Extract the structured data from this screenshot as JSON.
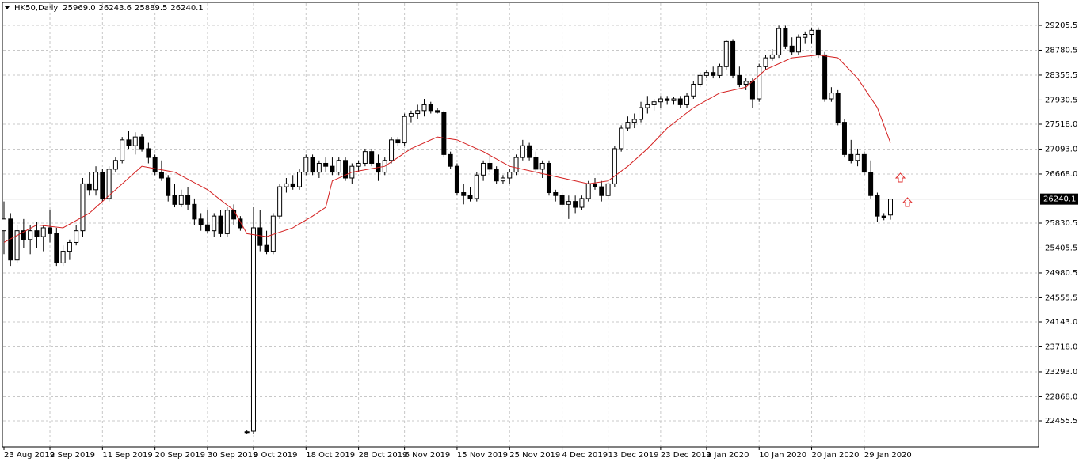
{
  "chart_data": {
    "type": "candlestick",
    "title": "HK50,Daily",
    "header_ohlc_labels": [
      "25969.0",
      "26243.6",
      "25889.5",
      "26240.1"
    ],
    "ylim": [
      22010,
      29597
    ],
    "yticks": [
      29205.5,
      28780.5,
      28355.5,
      27930.5,
      {
        "value": 27518,
        "label": "27518.0"
      },
      {
        "value": 27093,
        "label": "27093.0"
      },
      {
        "value": 26668,
        "label": "26668.0"
      },
      25830.5,
      25405.5,
      24980.5,
      24555.5,
      {
        "value": 24143,
        "label": "24143.0"
      },
      {
        "value": 23718,
        "label": "23718.0"
      },
      {
        "value": 23293,
        "label": "23293.0"
      },
      {
        "value": 22868,
        "label": "22868.0"
      },
      22455.5
    ],
    "grid": true,
    "up_color": "#ffffff",
    "down_color": "#000000",
    "categories": [
      "23 Aug 2019",
      null,
      null,
      null,
      null,
      null,
      null,
      "2 Sep 2019",
      null,
      null,
      null,
      null,
      null,
      null,
      null,
      "11 Sep 2019",
      null,
      null,
      null,
      null,
      null,
      null,
      null,
      "20 Sep 2019",
      null,
      null,
      null,
      null,
      null,
      null,
      null,
      "30 Sep 2019",
      null,
      null,
      null,
      null,
      null,
      null,
      "9 Oct 2019",
      null,
      null,
      null,
      null,
      null,
      null,
      null,
      "18 Oct 2019",
      null,
      null,
      null,
      null,
      null,
      null,
      null,
      "28 Oct 2019",
      null,
      null,
      null,
      null,
      null,
      null,
      "6 Nov 2019",
      null,
      null,
      null,
      null,
      null,
      null,
      null,
      "15 Nov 2019",
      null,
      null,
      null,
      null,
      null,
      null,
      null,
      "25 Nov 2019",
      null,
      null,
      null,
      null,
      null,
      null,
      null,
      "4 Dec 2019",
      null,
      null,
      null,
      null,
      null,
      null,
      "13 Dec 2019",
      null,
      null,
      null,
      null,
      null,
      null,
      null,
      "23 Dec 2019",
      null,
      null,
      null,
      null,
      null,
      null,
      "1 Jan 2020",
      null,
      null,
      null,
      null,
      null,
      null,
      null,
      "10 Jan 2020",
      null,
      null,
      null,
      null,
      null,
      null,
      null,
      "20 Jan 2020",
      null,
      null,
      null,
      null,
      null,
      null,
      null,
      "29 Jan 2020",
      null,
      null,
      null,
      null
    ],
    "ohlc": [
      [
        25700,
        26200,
        25300,
        25900
      ],
      [
        25900,
        26000,
        25100,
        25200
      ],
      [
        25200,
        25800,
        25150,
        25700
      ],
      [
        25700,
        25900,
        25400,
        25550
      ],
      [
        25550,
        25800,
        25300,
        25700
      ],
      [
        25700,
        25850,
        25400,
        25600
      ],
      [
        25600,
        25800,
        25350,
        25750
      ],
      [
        25750,
        26050,
        25500,
        25650
      ],
      [
        25650,
        25750,
        25100,
        25150
      ],
      [
        25150,
        25450,
        25100,
        25350
      ],
      [
        25350,
        25550,
        25200,
        25500
      ],
      [
        25500,
        25800,
        25450,
        25700
      ],
      [
        25700,
        26600,
        25600,
        26500
      ],
      [
        26500,
        26700,
        26300,
        26400
      ],
      [
        26400,
        26800,
        26300,
        26700
      ],
      [
        26700,
        26750,
        26200,
        26250
      ],
      [
        26250,
        26800,
        26200,
        26750
      ],
      [
        26750,
        26950,
        26700,
        26900
      ],
      [
        26900,
        27300,
        26850,
        27250
      ],
      [
        27250,
        27400,
        27100,
        27150
      ],
      [
        27150,
        27380,
        27000,
        27300
      ],
      [
        27300,
        27350,
        27050,
        27100
      ],
      [
        27100,
        27200,
        26850,
        26950
      ],
      [
        26950,
        27000,
        26650,
        26700
      ],
      [
        26700,
        26900,
        26550,
        26600
      ],
      [
        26600,
        26650,
        26200,
        26300
      ],
      [
        26300,
        26500,
        26100,
        26150
      ],
      [
        26150,
        26400,
        26100,
        26300
      ],
      [
        26300,
        26450,
        26050,
        26150
      ],
      [
        26150,
        26250,
        25800,
        25900
      ],
      [
        25900,
        26000,
        25700,
        25800
      ],
      [
        25800,
        26050,
        25650,
        25700
      ],
      [
        25700,
        26000,
        25600,
        25950
      ],
      [
        25950,
        26050,
        25600,
        25650
      ],
      [
        25650,
        26100,
        25600,
        26050
      ],
      [
        26050,
        26150,
        25800,
        25900
      ],
      [
        25900,
        25950,
        25700,
        25750
      ],
      [
        22270,
        22300,
        22230,
        22260
      ],
      [
        22280,
        26100,
        22240,
        25750
      ],
      [
        25750,
        26050,
        25350,
        25450
      ],
      [
        25450,
        25700,
        25300,
        25350
      ],
      [
        25350,
        26000,
        25300,
        25950
      ],
      [
        25950,
        26500,
        25900,
        26450
      ],
      [
        26450,
        26600,
        26350,
        26500
      ],
      [
        26500,
        26650,
        26400,
        26450
      ],
      [
        26450,
        26750,
        26400,
        26700
      ],
      [
        26700,
        27000,
        26650,
        26950
      ],
      [
        26950,
        27000,
        26650,
        26700
      ],
      [
        26700,
        26900,
        26600,
        26850
      ],
      [
        26850,
        26950,
        26700,
        26800
      ],
      [
        26800,
        26950,
        26650,
        26700
      ],
      [
        26700,
        26950,
        26650,
        26900
      ],
      [
        26900,
        26950,
        26550,
        26600
      ],
      [
        26600,
        26850,
        26500,
        26800
      ],
      [
        26800,
        26900,
        26700,
        26850
      ],
      [
        26850,
        27100,
        26800,
        27050
      ],
      [
        27050,
        27100,
        26800,
        26850
      ],
      [
        26850,
        27000,
        26550,
        26700
      ],
      [
        26700,
        26950,
        26650,
        26900
      ],
      [
        26900,
        27300,
        26850,
        27250
      ],
      [
        27250,
        27300,
        27150,
        27200
      ],
      [
        27200,
        27700,
        27150,
        27650
      ],
      [
        27650,
        27750,
        27550,
        27700
      ],
      [
        27700,
        27850,
        27600,
        27750
      ],
      [
        27750,
        27950,
        27650,
        27850
      ],
      [
        27850,
        27900,
        27700,
        27750
      ],
      [
        27750,
        27800,
        27700,
        27720
      ],
      [
        27720,
        27750,
        26950,
        27000
      ],
      [
        27000,
        27050,
        26750,
        26800
      ],
      [
        26800,
        26850,
        26300,
        26350
      ],
      [
        26350,
        26500,
        26150,
        26300
      ],
      [
        26300,
        26450,
        26200,
        26250
      ],
      [
        26250,
        26700,
        26200,
        26650
      ],
      [
        26650,
        26900,
        26550,
        26850
      ],
      [
        26850,
        27000,
        26700,
        26750
      ],
      [
        26750,
        26800,
        26500,
        26550
      ],
      [
        26550,
        26650,
        26500,
        26600
      ],
      [
        26600,
        26750,
        26500,
        26700
      ],
      [
        26700,
        27000,
        26650,
        26950
      ],
      [
        26950,
        27250,
        26900,
        27150
      ],
      [
        27150,
        27200,
        26900,
        26950
      ],
      [
        26950,
        27050,
        26700,
        26750
      ],
      [
        26750,
        26900,
        26600,
        26850
      ],
      [
        26850,
        26900,
        26300,
        26350
      ],
      [
        26350,
        26400,
        26200,
        26300
      ],
      [
        26300,
        26350,
        26100,
        26150
      ],
      [
        26150,
        26300,
        25900,
        26200
      ],
      [
        26200,
        26300,
        26000,
        26100
      ],
      [
        26100,
        26300,
        26050,
        26250
      ],
      [
        26250,
        26550,
        26200,
        26500
      ],
      [
        26500,
        26600,
        26400,
        26450
      ],
      [
        26450,
        26550,
        26200,
        26300
      ],
      [
        26300,
        26550,
        26250,
        26500
      ],
      [
        26500,
        27150,
        26450,
        27100
      ],
      [
        27100,
        27500,
        27050,
        27450
      ],
      [
        27450,
        27650,
        27400,
        27550
      ],
      [
        27550,
        27700,
        27450,
        27600
      ],
      [
        27600,
        27900,
        27550,
        27800
      ],
      [
        27800,
        28000,
        27700,
        27850
      ],
      [
        27850,
        27950,
        27750,
        27900
      ],
      [
        27900,
        28000,
        27800,
        27950
      ],
      [
        27950,
        28000,
        27850,
        27920
      ],
      [
        27920,
        27980,
        27850,
        27950
      ],
      [
        27950,
        28000,
        27800,
        27850
      ],
      [
        27850,
        28050,
        27800,
        28000
      ],
      [
        28000,
        28250,
        27950,
        28200
      ],
      [
        28200,
        28400,
        28150,
        28350
      ],
      [
        28350,
        28450,
        28300,
        28400
      ],
      [
        28400,
        28500,
        28300,
        28350
      ],
      [
        28350,
        28550,
        28300,
        28500
      ],
      [
        28500,
        28960,
        28450,
        28930
      ],
      [
        28930,
        28970,
        28300,
        28350
      ],
      [
        28350,
        28500,
        28150,
        28200
      ],
      [
        28200,
        28300,
        28100,
        28250
      ],
      [
        28250,
        28300,
        27800,
        27950
      ],
      [
        27950,
        28550,
        27900,
        28500
      ],
      [
        28500,
        28700,
        28450,
        28650
      ],
      [
        28650,
        28800,
        28600,
        28700
      ],
      [
        28700,
        29200,
        28650,
        29150
      ],
      [
        29150,
        29200,
        28800,
        28850
      ],
      [
        28850,
        29000,
        28700,
        28750
      ],
      [
        28750,
        29050,
        28700,
        29000
      ],
      [
        29000,
        29100,
        28900,
        29050
      ],
      [
        29050,
        29150,
        28900,
        29120
      ],
      [
        29120,
        29170,
        28650,
        28700
      ],
      [
        28700,
        28750,
        27900,
        27950
      ],
      [
        27950,
        28150,
        27900,
        28050
      ],
      [
        28050,
        28100,
        27500,
        27550
      ],
      [
        27550,
        27600,
        26950,
        27000
      ],
      [
        27000,
        27250,
        26850,
        26900
      ],
      [
        26900,
        27100,
        26800,
        27000
      ],
      [
        27000,
        27050,
        26650,
        26700
      ],
      [
        26700,
        26900,
        26250,
        26300
      ],
      [
        26300,
        26350,
        25850,
        25950
      ],
      [
        25950,
        26000,
        25880,
        25920
      ],
      [
        25969,
        26243.6,
        25889.5,
        26240.1
      ]
    ],
    "ma": {
      "color": "#d42020",
      "x": [
        0,
        5,
        9,
        13,
        17,
        21,
        26,
        31,
        35,
        37,
        40,
        44,
        47,
        49,
        50,
        53,
        58,
        62,
        66,
        69,
        73,
        77,
        81,
        85,
        89,
        92,
        95,
        98,
        101,
        105,
        109,
        113,
        116,
        120,
        124,
        127,
        130,
        133,
        135
      ],
      "values": [
        25500,
        25800,
        25750,
        26000,
        26400,
        26800,
        26700,
        26400,
        26050,
        25650,
        25600,
        25750,
        25950,
        26100,
        26550,
        26700,
        26800,
        27100,
        27300,
        27250,
        27050,
        26800,
        26700,
        26600,
        26500,
        26550,
        26800,
        27100,
        27450,
        27800,
        28050,
        28150,
        28450,
        28650,
        28700,
        28650,
        28300,
        27800,
        27200
      ]
    }
  }
}
